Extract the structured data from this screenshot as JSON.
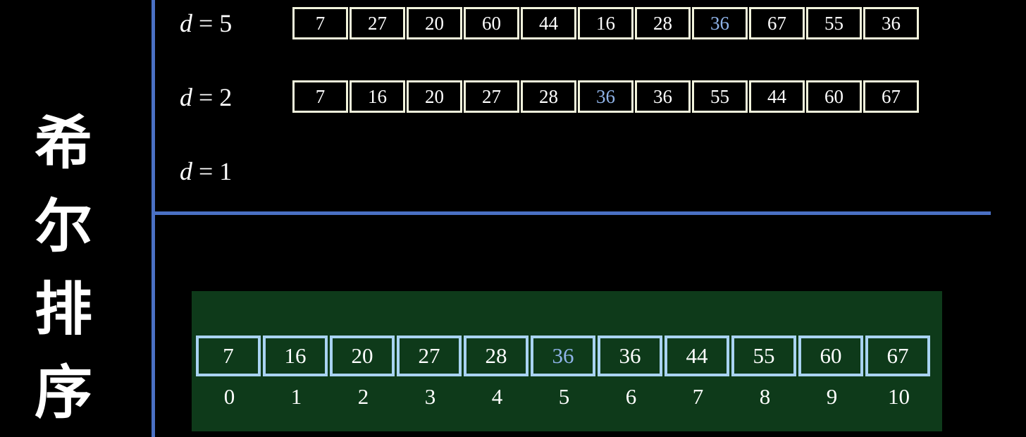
{
  "title": "希尔排序",
  "rows": [
    {
      "label_var": "d",
      "label_eq": " = 5",
      "values": [
        "7",
        "27",
        "20",
        "60",
        "44",
        "16",
        "28",
        "36",
        "67",
        "55",
        "36"
      ],
      "highlight_index": 7
    },
    {
      "label_var": "d",
      "label_eq": " = 2",
      "values": [
        "7",
        "16",
        "20",
        "27",
        "28",
        "36",
        "36",
        "55",
        "44",
        "60",
        "67"
      ],
      "highlight_index": 5
    },
    {
      "label_var": "d",
      "label_eq": " = 1",
      "values": []
    }
  ],
  "result": {
    "values": [
      "7",
      "16",
      "20",
      "27",
      "28",
      "36",
      "36",
      "44",
      "55",
      "60",
      "67"
    ],
    "highlight_index": 5,
    "indices": [
      "0",
      "1",
      "2",
      "3",
      "4",
      "5",
      "6",
      "7",
      "8",
      "9",
      "10"
    ]
  },
  "colors": {
    "divider": "#4a70c4",
    "panel": "#0e3a1a",
    "highlight": "#8fb3e8",
    "cell_border": "#f2f4dc",
    "result_border": "#a9d3f2"
  }
}
